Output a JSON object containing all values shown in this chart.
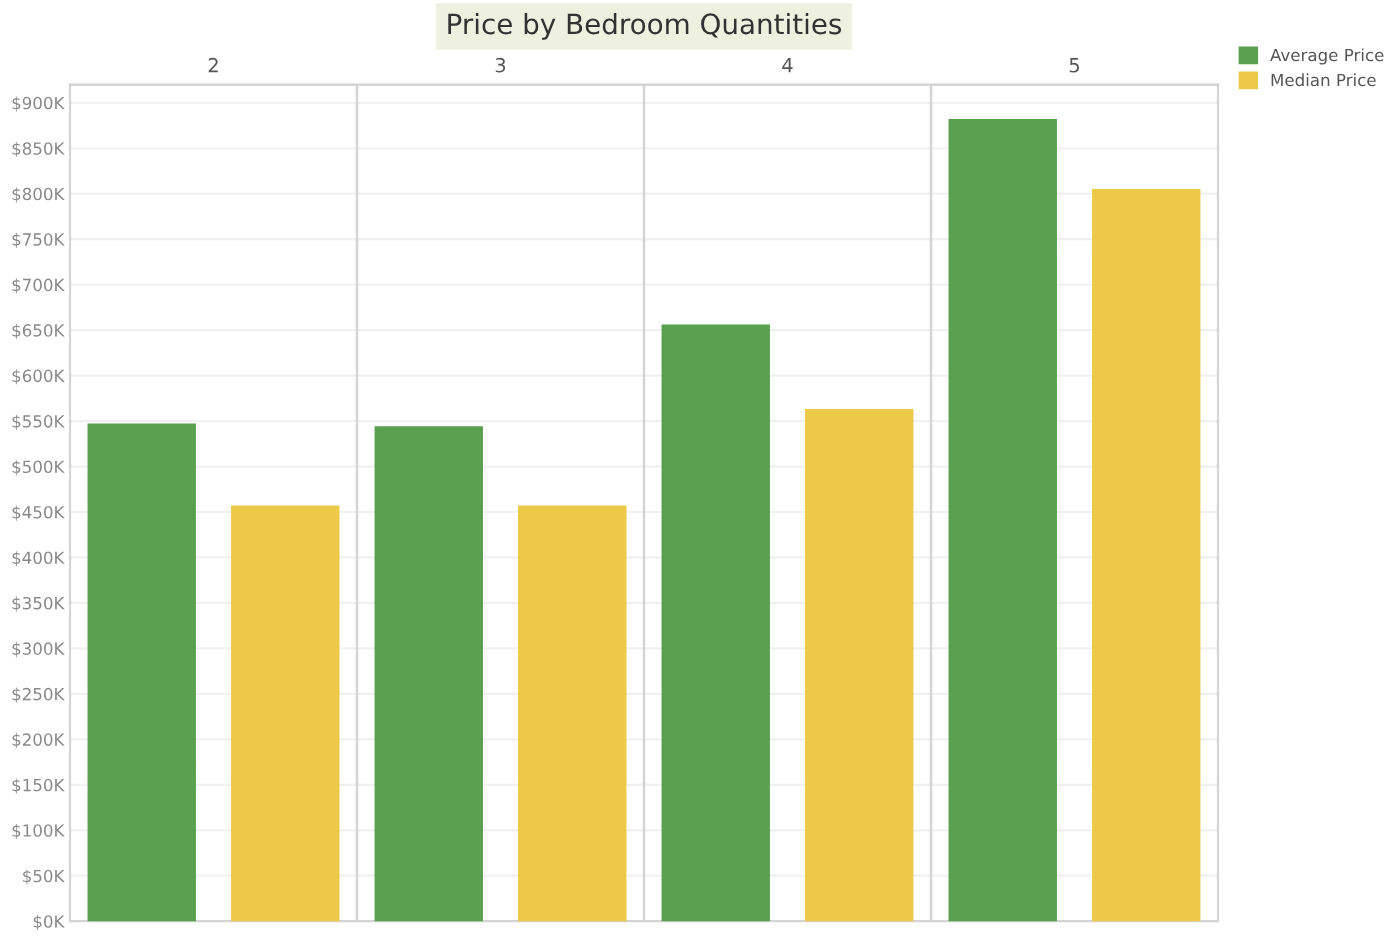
{
  "chart_data": {
    "type": "bar",
    "title": "Price by Bedroom Quantities",
    "categories": [
      "2",
      "3",
      "4",
      "5"
    ],
    "series": [
      {
        "name": "Average Price",
        "color": "#59a14f",
        "values": [
          546,
          543,
          655,
          881
        ]
      },
      {
        "name": "Median Price",
        "color": "#edc948",
        "values": [
          456,
          456,
          562,
          804
        ]
      }
    ],
    "ylim": [
      0,
      920
    ],
    "yticks": [
      {
        "value": 0,
        "label": "$0K"
      },
      {
        "value": 50,
        "label": "$50K"
      },
      {
        "value": 100,
        "label": "$100K"
      },
      {
        "value": 150,
        "label": "$150K"
      },
      {
        "value": 200,
        "label": "$200K"
      },
      {
        "value": 250,
        "label": "$250K"
      },
      {
        "value": 300,
        "label": "$300K"
      },
      {
        "value": 350,
        "label": "$350K"
      },
      {
        "value": 400,
        "label": "$400K"
      },
      {
        "value": 450,
        "label": "$450K"
      },
      {
        "value": 500,
        "label": "$500K"
      },
      {
        "value": 550,
        "label": "$550K"
      },
      {
        "value": 600,
        "label": "$600K"
      },
      {
        "value": 650,
        "label": "$650K"
      },
      {
        "value": 700,
        "label": "$700K"
      },
      {
        "value": 750,
        "label": "$750K"
      },
      {
        "value": 800,
        "label": "$800K"
      },
      {
        "value": 850,
        "label": "$850K"
      },
      {
        "value": 900,
        "label": "$900K"
      }
    ],
    "grid": "y",
    "legend": "top right"
  }
}
